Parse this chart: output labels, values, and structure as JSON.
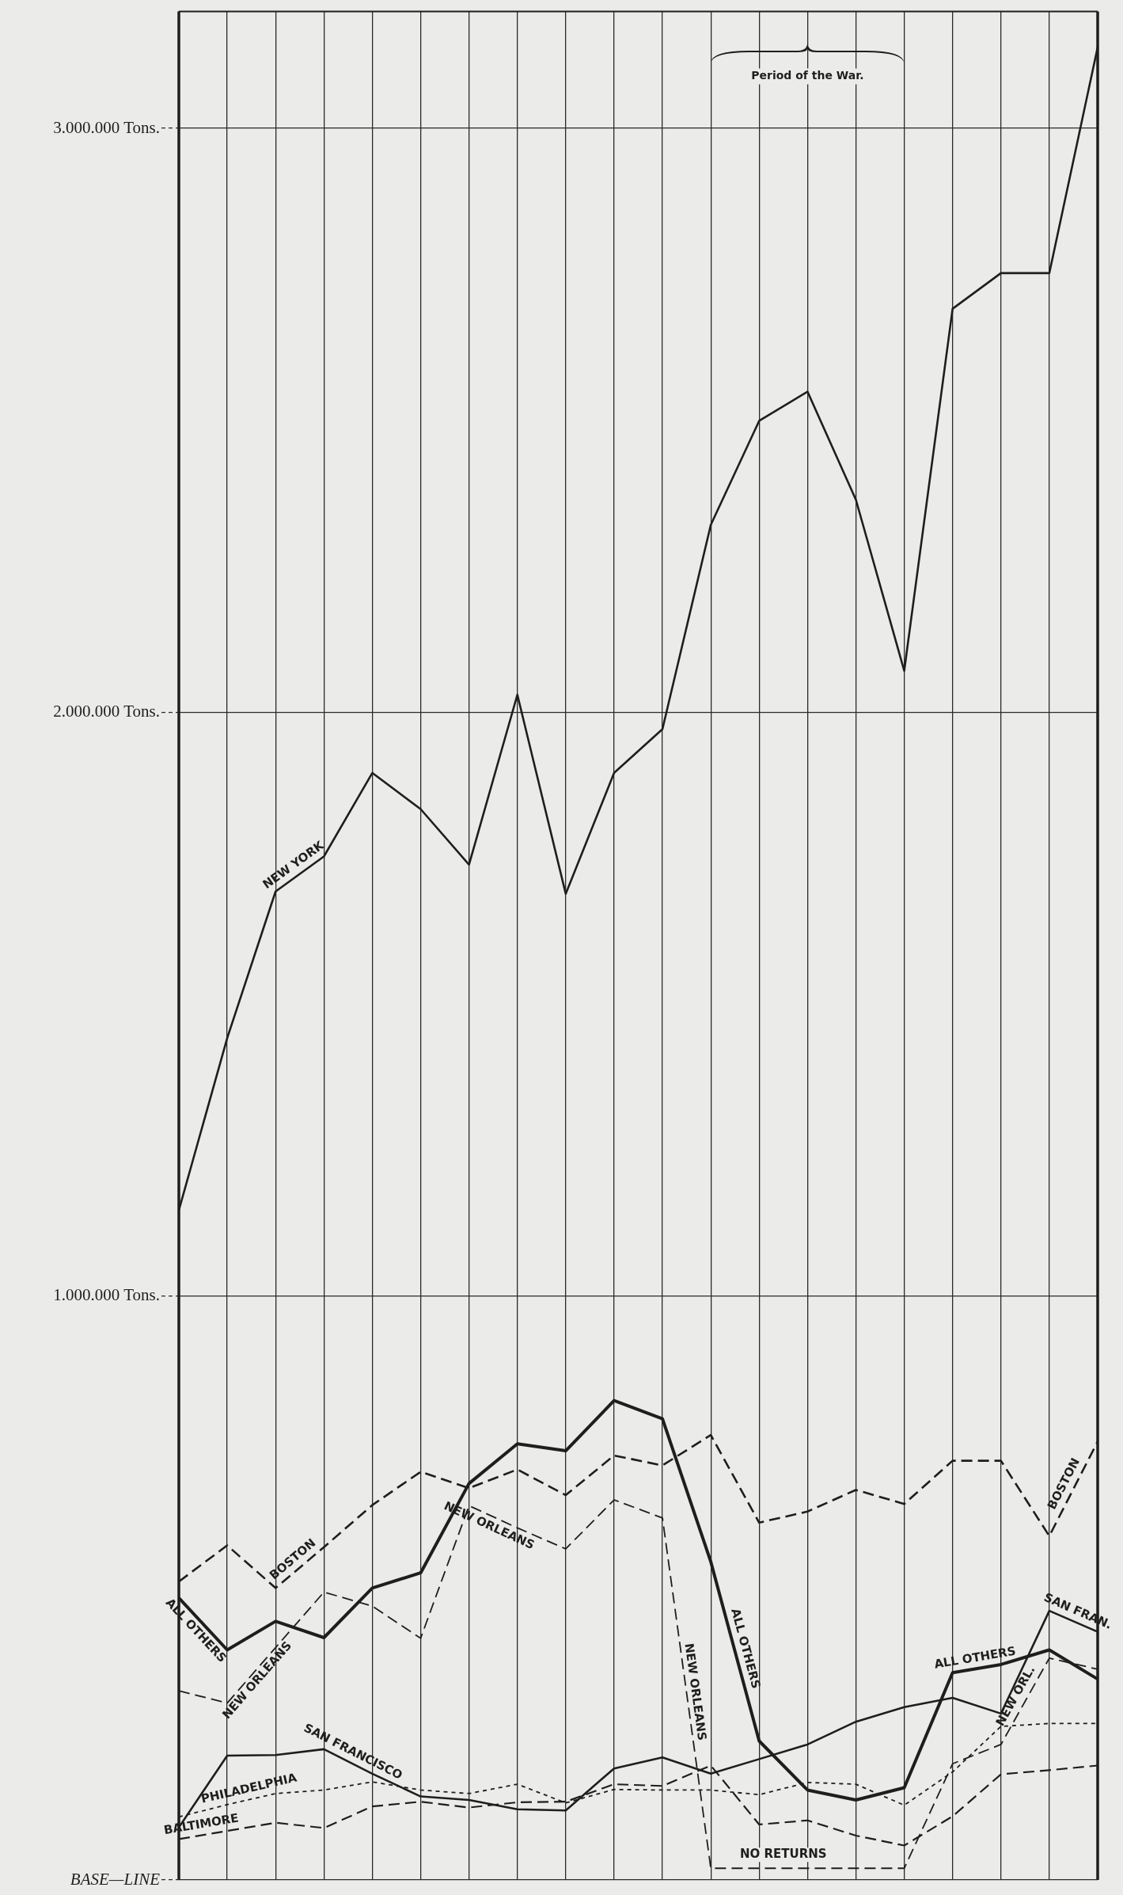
{
  "chart_data": {
    "type": "line",
    "categories": [
      null,
      null,
      null,
      null,
      null,
      null,
      null,
      null,
      null,
      null,
      null,
      null,
      null,
      null,
      null,
      null,
      null,
      null,
      null,
      null
    ],
    "series": [
      {
        "name": "NEW YORK",
        "color": "#1e1e1e",
        "line_style": "solid",
        "values": [
          1147000,
          1442000,
          1693000,
          1753000,
          1896000,
          1834000,
          1739000,
          2030000,
          1689000,
          1896000,
          1971000,
          2321000,
          2499000,
          2549000,
          2364000,
          2071000,
          2691000,
          2752000,
          2752000,
          3139000
        ]
      },
      {
        "name": "BOSTON",
        "color": "#1e1e1e",
        "line_style": "dashed",
        "values": [
          511000,
          573000,
          500000,
          570000,
          642000,
          699000,
          671000,
          703000,
          659000,
          727000,
          710000,
          762000,
          612000,
          631000,
          668000,
          644000,
          718000,
          718000,
          589000,
          751000
        ]
      },
      {
        "name": "ALL OTHERS",
        "color": "#1e1e1e",
        "line_style": "solid",
        "values": [
          483000,
          394000,
          443000,
          415000,
          500000,
          526000,
          679000,
          747000,
          735000,
          821000,
          790000,
          545000,
          238000,
          154000,
          137000,
          158000,
          355000,
          369000,
          394000,
          344000
        ]
      },
      {
        "name": "NEW ORLEANS",
        "color": "#1e1e1e",
        "line_style": "dashed",
        "values": [
          324000,
          303000,
          398000,
          493000,
          469000,
          414000,
          641000,
          603000,
          567000,
          651000,
          620000,
          20000,
          20000,
          20000,
          20000,
          20000,
          199000,
          232000,
          380000,
          361000
        ]
      },
      {
        "name": "SAN FRANCISCO",
        "color": "#1e1e1e",
        "line_style": "solid",
        "values": [
          90000,
          213000,
          214000,
          224000,
          182000,
          143000,
          137000,
          121000,
          119000,
          191000,
          210000,
          182000,
          207000,
          232000,
          271000,
          296000,
          312000,
          285000,
          461000,
          425000
        ]
      },
      {
        "name": "PHILADELPHIA",
        "color": "#1e1e1e",
        "line_style": "dotted",
        "values": [
          108000,
          129000,
          148000,
          154000,
          168000,
          154000,
          148000,
          164000,
          132000,
          155000,
          154000,
          154000,
          146000,
          167000,
          164000,
          128000,
          185000,
          263000,
          268000,
          268000
        ]
      },
      {
        "name": "BALTIMORE",
        "color": "#1e1e1e",
        "line_style": "dashed",
        "values": [
          70000,
          84000,
          98000,
          89000,
          126000,
          134000,
          124000,
          133000,
          134000,
          164000,
          161000,
          196000,
          95000,
          102000,
          76000,
          59000,
          109000,
          181000,
          188000,
          196000
        ]
      }
    ],
    "ylim": [
      0,
      3200000
    ],
    "yticks": [
      {
        "value": 0,
        "label": "BASE—LINE"
      },
      {
        "value": 1000000,
        "label": "1.000.000 Tons."
      },
      {
        "value": 2000000,
        "label": "2.000.000 Tons."
      },
      {
        "value": 3000000,
        "label": "3.000.000 Tons."
      }
    ],
    "grid": true,
    "tick_labels": "y",
    "annotations": [
      "Period of the War.",
      "BOSTON",
      "ALL OTHERS",
      "ALL OTHERS",
      "NEW ORLEANS",
      "NEW ORLEANS",
      "NEW ORL.",
      "SAN FRAN.",
      "NO RETURNS"
    ]
  }
}
